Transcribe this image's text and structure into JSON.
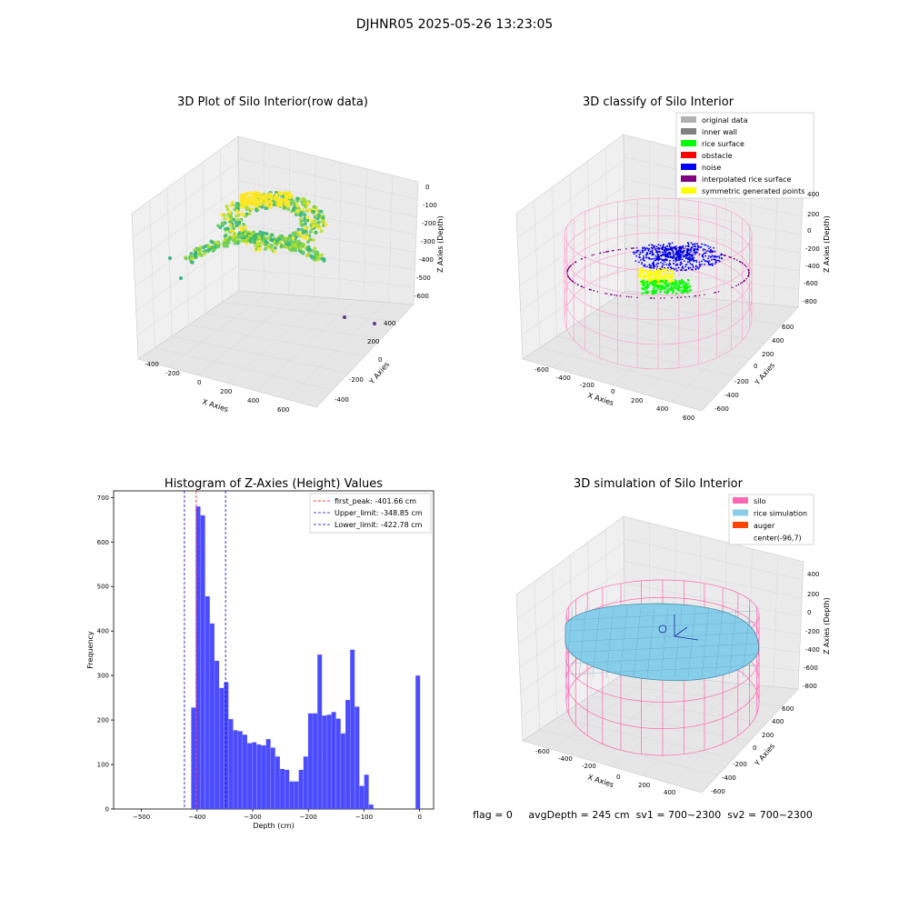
{
  "suptitle": "DJHNR05 2025-05-26 13:23:05",
  "colors": {
    "hist_bar": "#4c4cff",
    "first_peak_line": "#ff0000",
    "limit_lines": "#0000cc",
    "silo_wire": "#ff69b4",
    "rice_fill": "#87ceeb",
    "raw_points": [
      "#35b779",
      "#6ece58",
      "#b5de2b",
      "#fde725",
      "#26828e"
    ]
  },
  "panels": {
    "raw": {
      "title": "3D Plot of Silo Interior(row data)",
      "xlabel": "X Axies",
      "ylabel": "Y Axies",
      "zlabel": "Z Axies (Depth)",
      "xticks": [
        "-400",
        "-200",
        "0",
        "200",
        "400",
        "600"
      ],
      "yticks": [
        "-400",
        "-200",
        "0",
        "200",
        "400"
      ],
      "zticks": [
        "0",
        "-100",
        "-200",
        "-300",
        "-400",
        "-500",
        "-600"
      ]
    },
    "classify": {
      "title": "3D classify of Silo Interior",
      "xlabel": "X Axies",
      "ylabel": "Y Axies",
      "zlabel": "Z Axies (Depth)",
      "xticks": [
        "-600",
        "-400",
        "-200",
        "0",
        "200",
        "400",
        "600"
      ],
      "yticks": [
        "-600",
        "-400",
        "-200",
        "0",
        "200",
        "400",
        "600"
      ],
      "zticks": [
        "400",
        "200",
        "0",
        "-200",
        "-400",
        "-600",
        "-800"
      ],
      "legend": [
        {
          "label": "original data",
          "color": "#b0b0b0"
        },
        {
          "label": "inner wall",
          "color": "#808080"
        },
        {
          "label": "rice surface",
          "color": "#00ff00"
        },
        {
          "label": "obstacle",
          "color": "#ff0000"
        },
        {
          "label": "noise",
          "color": "#0000ff"
        },
        {
          "label": "interpolated rice surface",
          "color": "#800080"
        },
        {
          "label": "symmetric generated points",
          "color": "#ffff00"
        }
      ]
    },
    "simulation": {
      "title": "3D simulation of Silo Interior",
      "xlabel": "X Axies",
      "ylabel": "Y Axies",
      "zlabel": "Z Axies (Depth)",
      "xticks": [
        "-600",
        "-400",
        "-200",
        "0",
        "200",
        "400"
      ],
      "yticks": [
        "-600",
        "-400",
        "-200",
        "0",
        "200",
        "400",
        "600"
      ],
      "zticks": [
        "400",
        "200",
        "0",
        "-200",
        "-400",
        "-600",
        "-800"
      ],
      "legend": [
        {
          "label": "silo",
          "color": "#ff69b4"
        },
        {
          "label": "rice simulation",
          "color": "#87ceeb"
        },
        {
          "label": "auger",
          "color": "#ff4500"
        },
        {
          "label": "center(-96,7)",
          "color": ""
        }
      ]
    }
  },
  "status_line": "flag = 0     avgDepth = 245 cm  sv1 = 700~2300  sv2 = 700~2300",
  "chart_data": {
    "type": "bar",
    "title": "Histogram of Z-Axies (Height) Values",
    "xlabel": "Depth (cm)",
    "ylabel": "Frequency",
    "xlim": [
      -550,
      25
    ],
    "ylim": [
      0,
      715
    ],
    "xticks": [
      -500,
      -400,
      -300,
      -200,
      -100,
      0
    ],
    "yticks": [
      0,
      100,
      200,
      300,
      400,
      500,
      600,
      700
    ],
    "bin_width": 8.4,
    "bin_starts": [
      -410.5,
      -402.1,
      -393.7,
      -385.3,
      -376.9,
      -368.5,
      -360.1,
      -351.7,
      -343.3,
      -334.9,
      -326.5,
      -318.1,
      -309.7,
      -301.3,
      -292.9,
      -284.5,
      -276.1,
      -267.7,
      -259.3,
      -250.9,
      -242.5,
      -234.1,
      -225.7,
      -217.3,
      -208.9,
      -200.5,
      -192.1,
      -183.7,
      -175.3,
      -166.9,
      -158.5,
      -150.1,
      -141.7,
      -133.3,
      -124.9,
      -116.5,
      -108.1,
      -99.7,
      -91.3,
      -82.9,
      -74.5,
      -66.1,
      -57.7,
      -49.3,
      -40.9,
      -32.5,
      -24.1,
      -15.7,
      -7.3
    ],
    "values": [
      228,
      680,
      660,
      478,
      417,
      333,
      272,
      285,
      202,
      177,
      175,
      167,
      148,
      150,
      145,
      143,
      157,
      138,
      118,
      90,
      88,
      62,
      62,
      88,
      118,
      215,
      215,
      347,
      210,
      212,
      218,
      203,
      170,
      245,
      358,
      230,
      52,
      77,
      10,
      300
    ],
    "value_bins": "first 40 bins ending at bin start -74.5 correspond sequentially to values",
    "lines": [
      {
        "label": "first_peak: -401.66 cm",
        "x": -401.66,
        "style": "dashed"
      },
      {
        "label": "Upper_limit: -348.85 cm",
        "x": -348.85,
        "style": "dashed"
      },
      {
        "label": "Lower_limit: -422.78 cm",
        "x": -422.78,
        "style": "dashed"
      }
    ],
    "legend_position": "top-right",
    "grid": false
  }
}
